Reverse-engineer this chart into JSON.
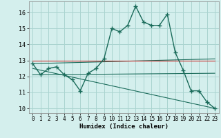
{
  "xlabel": "Humidex (Indice chaleur)",
  "background_color": "#d4efed",
  "grid_color": "#aad4d0",
  "line_color": "#1a6b5a",
  "red_line_color": "#cc3333",
  "xlim": [
    -0.5,
    23.5
  ],
  "ylim": [
    9.7,
    16.7
  ],
  "yticks": [
    10,
    11,
    12,
    13,
    14,
    15,
    16
  ],
  "xticks": [
    0,
    1,
    2,
    3,
    4,
    5,
    6,
    7,
    8,
    9,
    10,
    11,
    12,
    13,
    14,
    15,
    16,
    17,
    18,
    19,
    20,
    21,
    22,
    23
  ],
  "line1_x": [
    0,
    1,
    2,
    3,
    4,
    5,
    6,
    7,
    8,
    9,
    10,
    11,
    12,
    13,
    14,
    15,
    16,
    17,
    18,
    19,
    20,
    21,
    22,
    23
  ],
  "line1_y": [
    12.8,
    12.1,
    12.5,
    12.6,
    12.1,
    11.8,
    11.1,
    12.2,
    12.5,
    13.1,
    15.0,
    14.8,
    15.2,
    16.4,
    15.4,
    15.2,
    15.2,
    15.9,
    13.5,
    12.4,
    11.1,
    11.1,
    10.4,
    10.0
  ],
  "line2_x": [
    0,
    23
  ],
  "line2_y": [
    12.8,
    13.1
  ],
  "line3_x": [
    0,
    23
  ],
  "line3_y": [
    12.1,
    12.2
  ],
  "line4_x": [
    0,
    23
  ],
  "line4_y": [
    12.5,
    10.0
  ],
  "red_line_x": [
    0,
    23
  ],
  "red_line_y": [
    13.0,
    13.0
  ]
}
